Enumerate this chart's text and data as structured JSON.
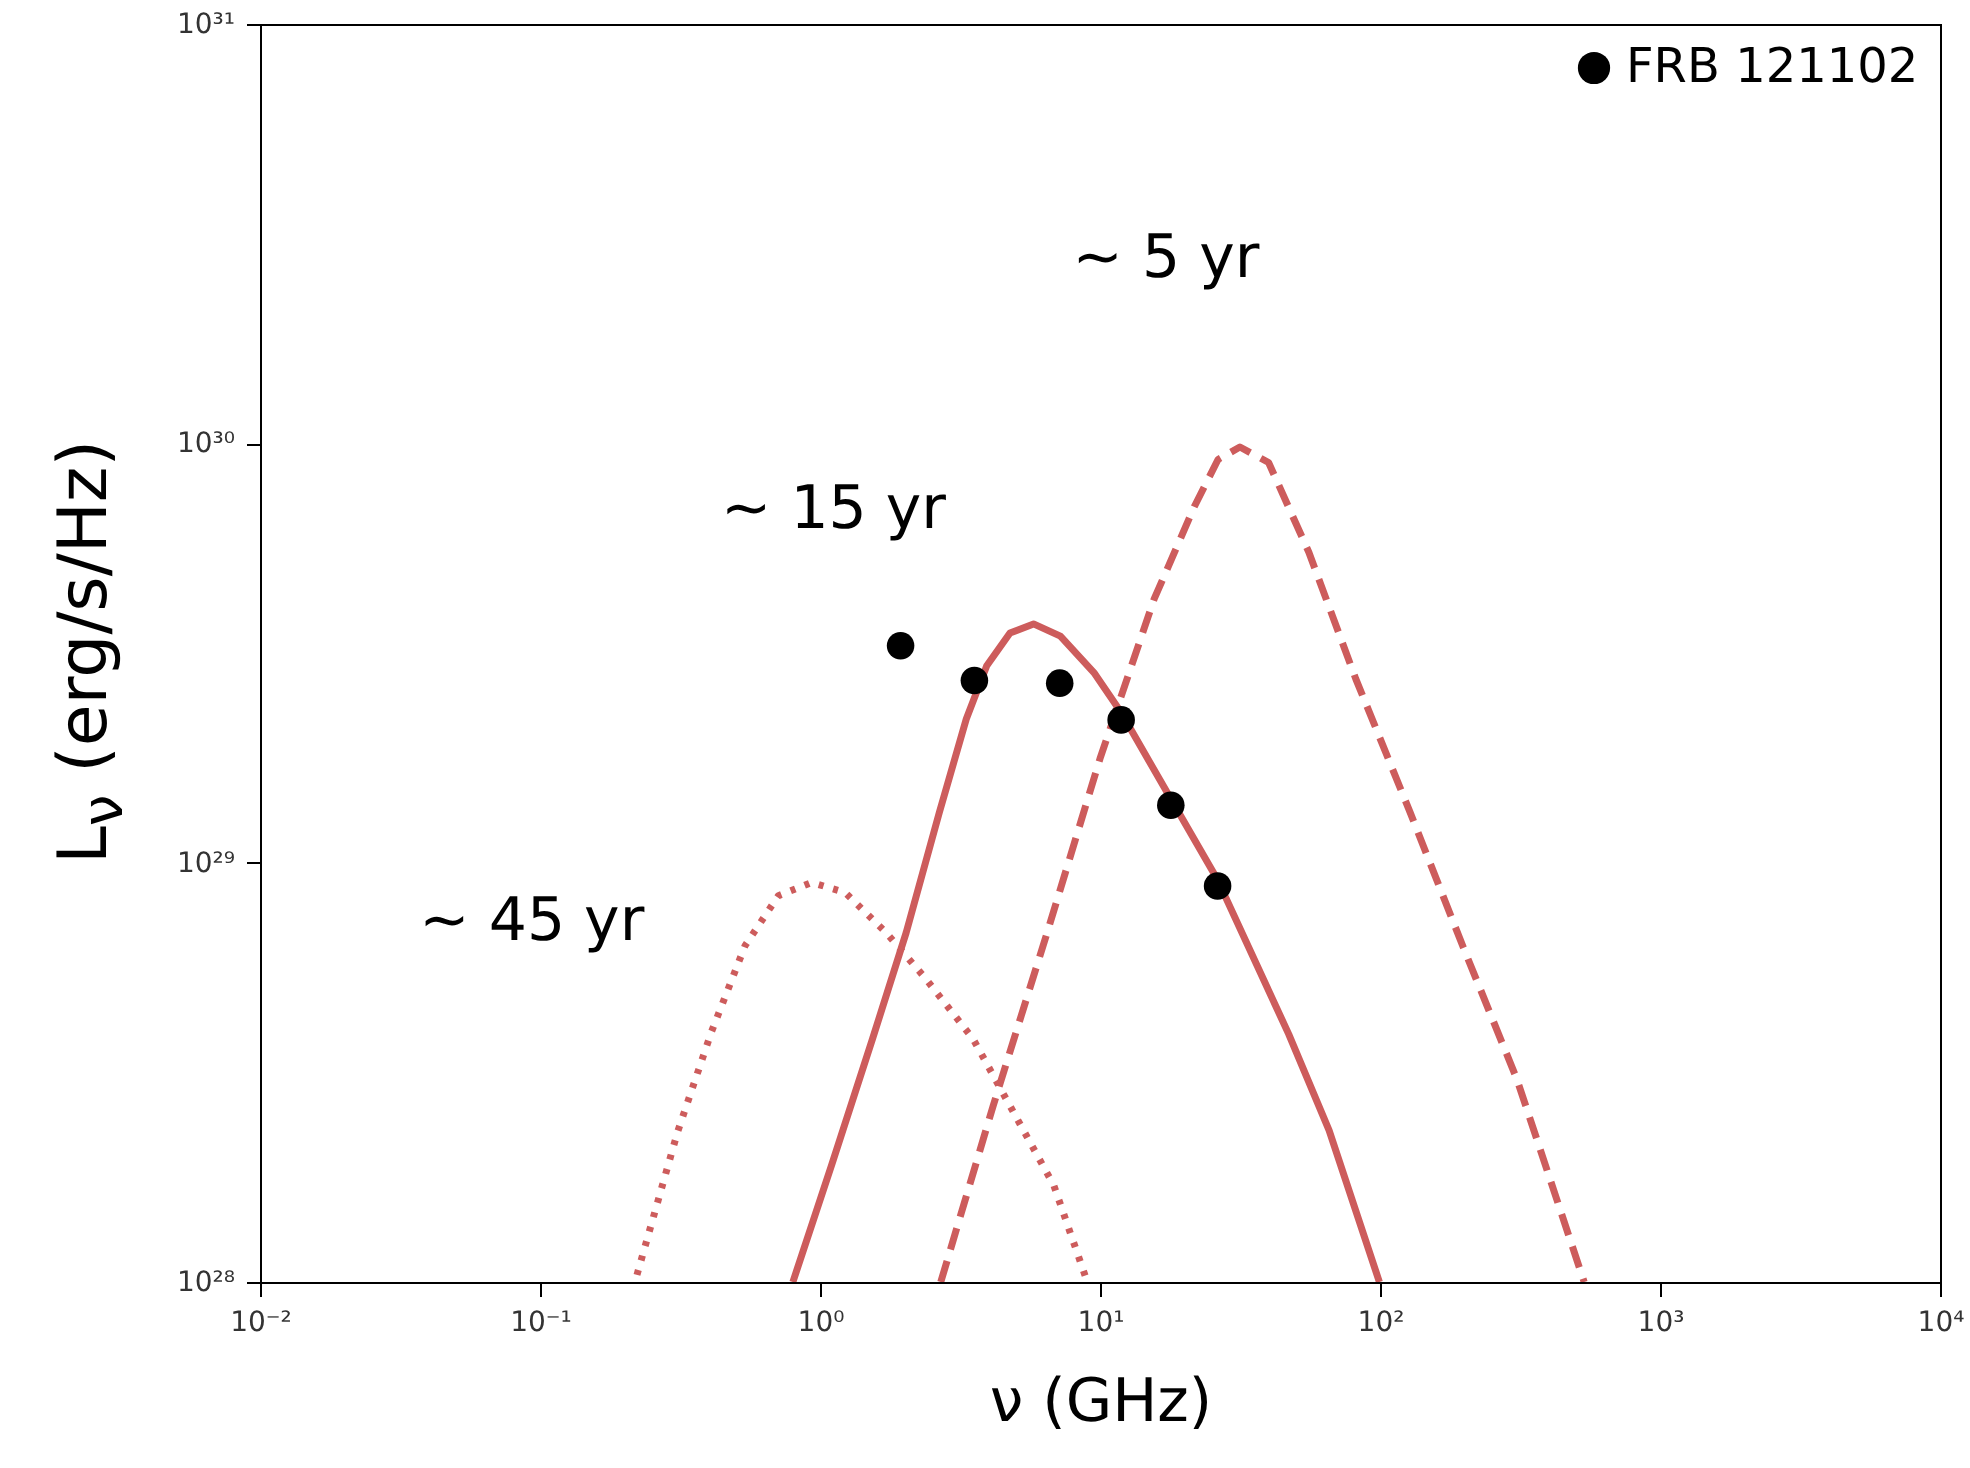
{
  "chart_data": {
    "type": "line",
    "xlabel": "ν (GHz)",
    "ylabel": "L$_{ν}$ (erg/s/Hz)",
    "log": "xy",
    "grid": false,
    "legend": "top right",
    "xlim": [
      0.01,
      10000
    ],
    "ylim": [
      1e+28,
      1e+31
    ],
    "xticks": [
      {
        "value": 0.01,
        "label": "10⁻²"
      },
      {
        "value": 0.1,
        "label": "10⁻¹"
      },
      {
        "value": 1,
        "label": "10⁰"
      },
      {
        "value": 10,
        "label": "10¹"
      },
      {
        "value": 100,
        "label": "10²"
      },
      {
        "value": 1000,
        "label": "10³"
      },
      {
        "value": 10000,
        "label": "10⁴"
      }
    ],
    "yticks": [
      {
        "value": 1e+28,
        "label": "10²⁸"
      },
      {
        "value": 1e+29,
        "label": "10²⁹"
      },
      {
        "value": 1e+30,
        "label": "10³⁰"
      },
      {
        "value": 1e+31,
        "label": "10³¹"
      }
    ],
    "series": [
      {
        "type": "line",
        "name": "~ 15 yr",
        "line_style": "solid",
        "color": "#cd5c5c",
        "x": [
          0.8,
          1.1,
          1.54,
          2.03,
          2.67,
          3.33,
          3.94,
          4.77,
          5.79,
          7.22,
          9.51,
          11.9,
          17.9,
          26.3,
          47.2,
          65.8,
          99.5
        ],
        "values": [
          1e+28,
          1.9e+28,
          3.8e+28,
          6.8e+28,
          1.32e+29,
          2.2e+29,
          2.95e+29,
          3.53e+29,
          3.71e+29,
          3.47e+29,
          2.84e+29,
          2.28e+29,
          1.42e+29,
          9.1e+28,
          3.9e+28,
          2.3e+28,
          1e+28
        ]
      },
      {
        "type": "line",
        "name": "~ 5 yr",
        "line_style": "dashed",
        "color": "#cd5c5c",
        "x": [
          2.7,
          4.16,
          6.47,
          10.0,
          15.6,
          21.8,
          26.4,
          31.6,
          40.0,
          55.7,
          82.0,
          128,
          198,
          308,
          536
        ],
        "values": [
          1e+28,
          2.64e+28,
          6.8e+28,
          1.77e+29,
          4.25e+29,
          7.1e+29,
          9.15e+29,
          9.8e+29,
          9e+29,
          5.5e+29,
          2.74e+29,
          1.32e+29,
          6.3e+28,
          3.05e+28,
          1e+28
        ]
      },
      {
        "type": "line",
        "name": "~ 45 yr",
        "line_style": "dotted",
        "color": "#cd5c5c",
        "x": [
          0.222,
          0.31,
          0.409,
          0.54,
          0.71,
          0.935,
          1.23,
          1.72,
          2.39,
          3.52,
          4.91,
          6.84,
          9.01
        ],
        "values": [
          1.04e+28,
          2.28e+28,
          3.94e+28,
          6.34e+28,
          8.34e+28,
          8.97e+28,
          8.49e+28,
          6.82e+28,
          5.28e+28,
          3.8e+28,
          2.54e+28,
          1.7e+28,
          1e+28
        ]
      },
      {
        "type": "scatter",
        "name": "FRB 121102",
        "marker": "circle",
        "color": "#000000",
        "x": [
          1.94,
          3.56,
          7.18,
          11.9,
          17.9,
          26.3
        ],
        "values": [
          3.29e+29,
          2.72e+29,
          2.68e+29,
          2.19e+29,
          1.37e+29,
          8.8e+28
        ]
      }
    ]
  }
}
